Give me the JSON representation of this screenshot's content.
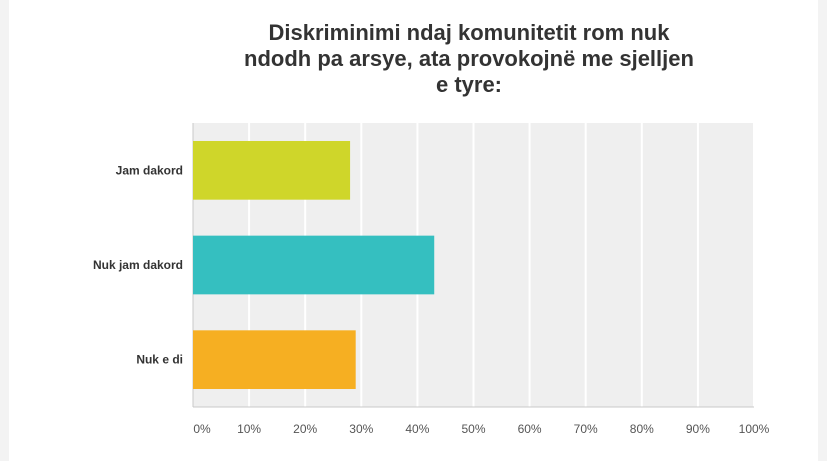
{
  "chart_data": {
    "type": "bar",
    "orientation": "horizontal",
    "title_lines": [
      "Diskriminimi ndaj komunitetit rom nuk",
      "ndodh pa arsye, ata provokojnë me sjelljen",
      "e tyre:"
    ],
    "categories": [
      "Jam dakord",
      "Nuk jam dakord",
      "Nuk e di"
    ],
    "values": [
      28,
      43,
      29
    ],
    "colors": [
      "#cfd62a",
      "#35bfc0",
      "#f6af22"
    ],
    "xlim": [
      0,
      100
    ],
    "x_ticks": [
      "0%",
      "10%",
      "20%",
      "30%",
      "40%",
      "50%",
      "60%",
      "70%",
      "80%",
      "90%",
      "100%"
    ],
    "grid": true,
    "legend": "none"
  }
}
